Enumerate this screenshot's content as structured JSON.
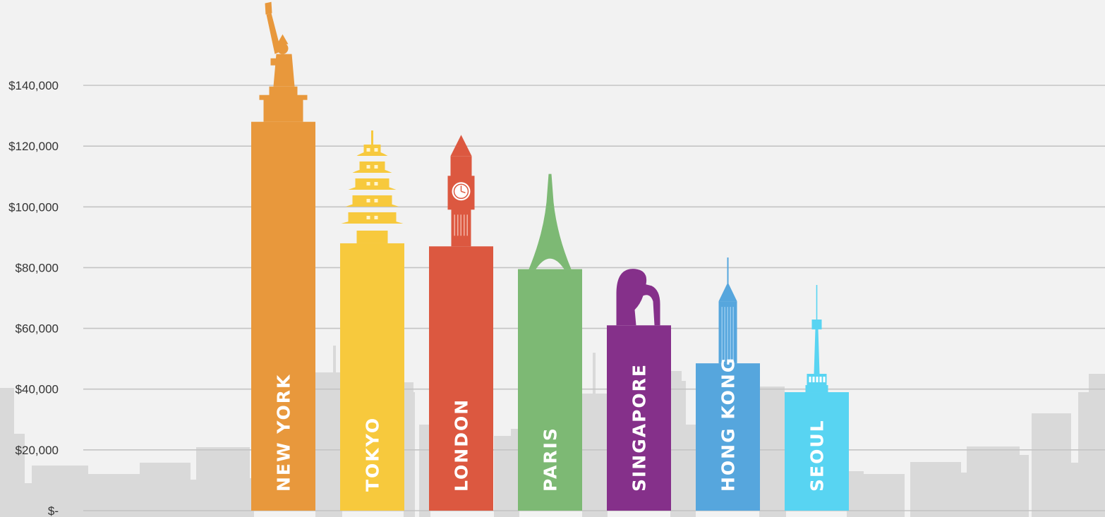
{
  "chart_data": {
    "type": "bar",
    "categories": [
      "NEW YORK",
      "TOKYO",
      "LONDON",
      "PARIS",
      "SINGAPORE",
      "HONG KONG",
      "SEOUL"
    ],
    "values": [
      128000,
      88000,
      87000,
      79500,
      61000,
      48500,
      39000
    ],
    "colors": [
      "#e8983c",
      "#f7c93d",
      "#dc5840",
      "#7db974",
      "#85308a",
      "#56a6dd",
      "#58d4f2"
    ],
    "ylim": [
      0,
      140000
    ],
    "yticks": [
      {
        "value": 0,
        "label": "$-"
      },
      {
        "value": 20000,
        "label": "$20,000"
      },
      {
        "value": 40000,
        "label": "$40,000"
      },
      {
        "value": 60000,
        "label": "$60,000"
      },
      {
        "value": 80000,
        "label": "$80,000"
      },
      {
        "value": 100000,
        "label": "$100,000"
      },
      {
        "value": 120000,
        "label": "$120,000"
      },
      {
        "value": 140000,
        "label": "$140,000"
      }
    ],
    "landmarks": [
      "statue-of-liberty-icon",
      "pagoda-icon",
      "big-ben-icon",
      "eiffel-tower-icon",
      "merlion-icon",
      "skyscraper-icon",
      "n-seoul-tower-icon"
    ],
    "grid": true,
    "background_skyline": true,
    "title": "",
    "xlabel": "",
    "ylabel": ""
  }
}
